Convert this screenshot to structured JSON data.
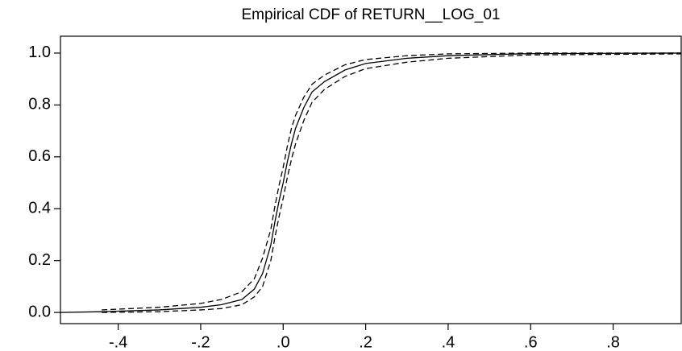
{
  "chart_data": {
    "type": "line",
    "title": "Empirical CDF of RETURN__LOG_01",
    "x": [
      -0.54,
      -0.44,
      -0.3,
      -0.2,
      -0.15,
      -0.1,
      -0.07,
      -0.05,
      -0.03,
      -0.02,
      -0.01,
      0,
      0.01,
      0.02,
      0.03,
      0.05,
      0.07,
      0.1,
      0.15,
      0.2,
      0.3,
      0.4,
      0.6,
      0.965
    ],
    "series": [
      {
        "color": "#000000",
        "dashed": false,
        "values": [
          0,
          0.003,
          0.01,
          0.02,
          0.03,
          0.05,
          0.09,
          0.15,
          0.26,
          0.35,
          0.43,
          0.5,
          0.58,
          0.65,
          0.71,
          0.79,
          0.85,
          0.89,
          0.935,
          0.96,
          0.98,
          0.99,
          0.998,
          1.0
        ]
      },
      {
        "color": "#000000",
        "dashed": true,
        "values": [
          null,
          0.01,
          0.02,
          0.035,
          0.05,
          0.08,
          0.13,
          0.21,
          0.32,
          0.41,
          0.49,
          0.56,
          0.64,
          0.71,
          0.76,
          0.83,
          0.88,
          0.915,
          0.955,
          0.975,
          0.99,
          0.997,
          1.0,
          1.0
        ]
      },
      {
        "color": "#000000",
        "dashed": true,
        "values": [
          null,
          0,
          0.003,
          0.01,
          0.015,
          0.03,
          0.06,
          0.1,
          0.2,
          0.29,
          0.37,
          0.44,
          0.52,
          0.59,
          0.65,
          0.74,
          0.81,
          0.86,
          0.91,
          0.94,
          0.965,
          0.98,
          0.993,
          0.997
        ]
      }
    ],
    "xlim": [
      -0.54,
      0.965
    ],
    "ylim": [
      -0.043,
      1.065
    ],
    "xticks": [
      {
        "value": -0.4,
        "label": "-.4"
      },
      {
        "value": -0.2,
        "label": "-.2"
      },
      {
        "value": 0,
        "label": ".0"
      },
      {
        "value": 0.2,
        "label": ".2"
      },
      {
        "value": 0.4,
        "label": ".4"
      },
      {
        "value": 0.6,
        "label": ".6"
      },
      {
        "value": 0.8,
        "label": ".8"
      }
    ],
    "yticks": [
      {
        "value": 0,
        "label": "0.0"
      },
      {
        "value": 0.2,
        "label": "0.2"
      },
      {
        "value": 0.4,
        "label": "0.4"
      },
      {
        "value": 0.6,
        "label": "0.6"
      },
      {
        "value": 0.8,
        "label": "0.8"
      },
      {
        "value": 1.0,
        "label": "1.0"
      }
    ]
  }
}
